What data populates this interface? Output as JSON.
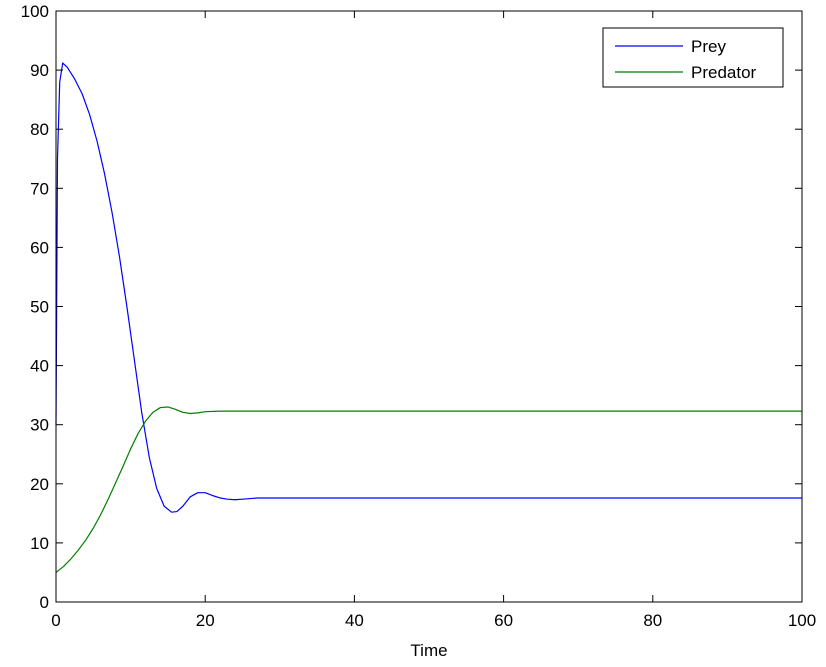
{
  "chart_data": {
    "type": "line",
    "title": "",
    "xlabel": "Time",
    "ylabel": "",
    "xlim": [
      0,
      100
    ],
    "ylim": [
      0,
      100
    ],
    "xticks": [
      0,
      20,
      40,
      60,
      80,
      100
    ],
    "yticks": [
      0,
      10,
      20,
      30,
      40,
      50,
      60,
      70,
      80,
      90,
      100
    ],
    "xtick_labels": [
      "0",
      "20",
      "40",
      "60",
      "80",
      "100"
    ],
    "ytick_labels": [
      "0",
      "10",
      "20",
      "30",
      "40",
      "50",
      "60",
      "70",
      "80",
      "90",
      "100"
    ],
    "grid": false,
    "legend_position": "top-right",
    "series": [
      {
        "name": "Prey",
        "color": "#0000ff",
        "x": [
          0,
          0.2,
          0.5,
          0.9,
          1.5,
          2.5,
          3.5,
          4.5,
          5.5,
          6.5,
          7.5,
          8.5,
          9.5,
          10.5,
          11.5,
          12.5,
          13.5,
          14.5,
          15.5,
          16.2,
          17,
          18,
          19,
          20,
          21,
          22,
          23,
          24,
          25,
          27,
          30,
          35,
          40,
          50,
          60,
          70,
          80,
          90,
          100
        ],
        "y": [
          30,
          75,
          88,
          91.2,
          90.5,
          88.5,
          86,
          82.5,
          78,
          72.5,
          66,
          58.5,
          50,
          41,
          32,
          24.5,
          19.2,
          16.2,
          15.2,
          15.3,
          16.2,
          17.8,
          18.5,
          18.5,
          18,
          17.6,
          17.4,
          17.3,
          17.4,
          17.6,
          17.6,
          17.6,
          17.6,
          17.6,
          17.6,
          17.6,
          17.6,
          17.6,
          17.6
        ]
      },
      {
        "name": "Predator",
        "color": "#007f00",
        "x": [
          0,
          1,
          2,
          3,
          4,
          5,
          6,
          7,
          8,
          9,
          10,
          11,
          12,
          13,
          14,
          15,
          16,
          17,
          18,
          19,
          20,
          22,
          24,
          27,
          30,
          40,
          50,
          60,
          70,
          80,
          90,
          100
        ],
        "y": [
          5,
          6,
          7.3,
          8.8,
          10.5,
          12.5,
          14.8,
          17.4,
          20.2,
          23,
          25.9,
          28.5,
          30.6,
          32.1,
          32.9,
          33,
          32.6,
          32.1,
          31.9,
          32,
          32.2,
          32.3,
          32.3,
          32.3,
          32.3,
          32.3,
          32.3,
          32.3,
          32.3,
          32.3,
          32.3,
          32.3
        ]
      }
    ]
  }
}
